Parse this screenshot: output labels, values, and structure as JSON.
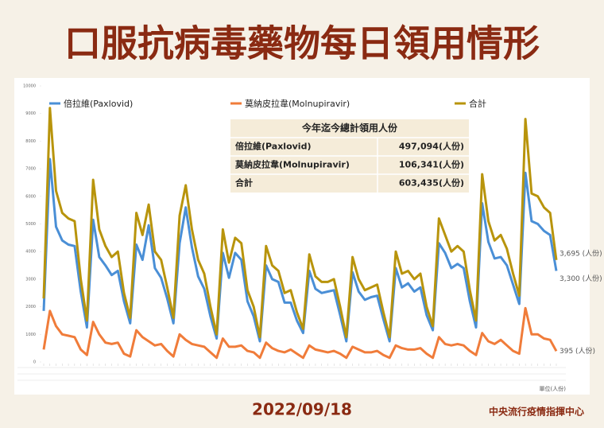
{
  "chart_data": {
    "type": "line",
    "title": "口服抗病毒藥物每日領用情形",
    "date": "2022/09/18",
    "source": "中央流行疫情指揮中心",
    "unit": "單位(人份)",
    "categories": [
      null,
      null,
      null,
      null,
      null,
      null,
      null,
      null,
      null,
      null,
      null,
      null,
      null,
      null,
      null,
      null,
      null,
      null,
      null,
      null,
      null,
      null,
      null,
      null,
      null,
      null,
      null,
      null,
      null,
      null,
      null,
      null,
      null,
      null,
      null,
      null,
      null,
      null,
      null,
      null,
      null,
      null,
      null,
      null,
      null,
      null,
      null,
      null,
      null,
      null,
      null,
      null,
      null,
      null,
      null,
      null,
      null,
      null,
      null,
      null,
      null,
      null,
      null,
      null,
      null,
      null,
      null,
      null,
      null,
      null,
      null,
      null,
      null,
      null,
      null,
      null,
      null,
      null,
      null,
      null,
      null,
      null,
      null,
      null
    ],
    "ylim": [
      0,
      10000
    ],
    "yticks": [
      0,
      1000,
      2000,
      3000,
      4000,
      5000,
      6000,
      7000,
      8000,
      9000,
      10000
    ],
    "series": [
      {
        "name": "倍拉維(Paxlovid)",
        "color": "#4a8fd6",
        "values": [
          1850,
          7350,
          4900,
          4400,
          4250,
          4200,
          2550,
          1250,
          5150,
          3800,
          3500,
          3150,
          3300,
          2200,
          1400,
          4250,
          3700,
          4950,
          3400,
          3050,
          2300,
          1400,
          4300,
          5600,
          4150,
          3100,
          2650,
          1650,
          850,
          3950,
          3050,
          3950,
          3700,
          2200,
          1650,
          750,
          3500,
          3000,
          2900,
          2150,
          2150,
          1500,
          1050,
          3300,
          2650,
          2500,
          2550,
          2600,
          1700,
          750,
          3250,
          2550,
          2250,
          2350,
          2400,
          1550,
          750,
          3400,
          2700,
          2850,
          2550,
          2700,
          1700,
          1150,
          4300,
          3950,
          3400,
          3550,
          3400,
          2200,
          1250,
          5750,
          4350,
          3750,
          3800,
          3500,
          2800,
          2100,
          6850,
          5100,
          5000,
          4750,
          4600,
          3300
        ],
        "value_labels": [
          null,
          null,
          null,
          null,
          null,
          null,
          null,
          null,
          null,
          null,
          null,
          null,
          null,
          null,
          null,
          null,
          null,
          null,
          null,
          null,
          null,
          null,
          null,
          null,
          null,
          null,
          null,
          null,
          null,
          null,
          null,
          null,
          null,
          null,
          null,
          null,
          null,
          null,
          null,
          null,
          null,
          null,
          null,
          null,
          null,
          null,
          null,
          null,
          null,
          null,
          null,
          null,
          null,
          null,
          null,
          null,
          null,
          null,
          null,
          null,
          null,
          null,
          null,
          null,
          null,
          null,
          null,
          null,
          null,
          null,
          null,
          null,
          null,
          null,
          null,
          null,
          null,
          null,
          null,
          null,
          null,
          null,
          null,
          "3,300 (人份)"
        ]
      },
      {
        "name": "莫納皮拉韋(Molnupiravir)",
        "color": "#f07c3a",
        "values": [
          450,
          1850,
          1300,
          1000,
          950,
          900,
          450,
          250,
          1450,
          1000,
          700,
          650,
          700,
          300,
          200,
          1150,
          900,
          750,
          600,
          650,
          400,
          200,
          1000,
          800,
          650,
          600,
          550,
          350,
          150,
          850,
          550,
          550,
          600,
          400,
          350,
          150,
          700,
          500,
          400,
          350,
          450,
          300,
          150,
          600,
          450,
          400,
          350,
          400,
          300,
          150,
          550,
          450,
          350,
          350,
          400,
          250,
          150,
          600,
          500,
          450,
          450,
          500,
          300,
          150,
          900,
          650,
          600,
          650,
          600,
          400,
          250,
          1050,
          750,
          650,
          800,
          600,
          400,
          300,
          1950,
          1000,
          1000,
          850,
          800,
          395
        ],
        "value_labels": [
          null,
          null,
          null,
          null,
          null,
          null,
          null,
          null,
          null,
          null,
          null,
          null,
          null,
          null,
          null,
          null,
          null,
          null,
          null,
          null,
          null,
          null,
          null,
          null,
          null,
          null,
          null,
          null,
          null,
          null,
          null,
          null,
          null,
          null,
          null,
          null,
          null,
          null,
          null,
          null,
          null,
          null,
          null,
          null,
          null,
          null,
          null,
          null,
          null,
          null,
          null,
          null,
          null,
          null,
          null,
          null,
          null,
          null,
          null,
          null,
          null,
          null,
          null,
          null,
          null,
          null,
          null,
          null,
          null,
          null,
          null,
          null,
          null,
          null,
          null,
          null,
          null,
          null,
          null,
          null,
          null,
          null,
          null,
          "395 (人份)"
        ]
      },
      {
        "name": "合計",
        "color": "#b8940c",
        "values": [
          2300,
          9200,
          6200,
          5400,
          5200,
          5100,
          3000,
          1500,
          6600,
          4800,
          4200,
          3800,
          4000,
          2500,
          1600,
          5400,
          4600,
          5700,
          4000,
          3700,
          2700,
          1600,
          5300,
          6400,
          4800,
          3700,
          3200,
          2000,
          1000,
          4800,
          3600,
          4500,
          4300,
          2600,
          2000,
          900,
          4200,
          3500,
          3300,
          2500,
          2600,
          1800,
          1200,
          3900,
          3100,
          2900,
          2900,
          3000,
          2000,
          900,
          3800,
          3000,
          2600,
          2700,
          2800,
          1800,
          900,
          4000,
          3200,
          3300,
          3000,
          3200,
          2000,
          1300,
          5200,
          4600,
          4000,
          4200,
          4000,
          2600,
          1500,
          6800,
          5100,
          4400,
          4600,
          4100,
          3200,
          2400,
          8800,
          6100,
          6000,
          5600,
          5400,
          3695
        ],
        "value_labels": [
          null,
          null,
          null,
          null,
          null,
          null,
          null,
          null,
          null,
          null,
          null,
          null,
          null,
          null,
          null,
          null,
          null,
          null,
          null,
          null,
          null,
          null,
          null,
          null,
          null,
          null,
          null,
          null,
          null,
          null,
          null,
          null,
          null,
          null,
          null,
          null,
          null,
          null,
          null,
          null,
          null,
          null,
          null,
          null,
          null,
          null,
          null,
          null,
          null,
          null,
          null,
          null,
          null,
          null,
          null,
          null,
          null,
          null,
          null,
          null,
          null,
          null,
          null,
          null,
          null,
          null,
          null,
          null,
          null,
          null,
          null,
          null,
          null,
          null,
          null,
          null,
          null,
          null,
          null,
          null,
          null,
          null,
          null,
          "3,695 (人份)"
        ]
      }
    ],
    "summary": {
      "title": "今年迄今總計領用人份",
      "rows": [
        [
          "倍拉維(Paxlovid)",
          "497,094(人份)"
        ],
        [
          "莫納皮拉韋(Molnupiravir)",
          "106,341(人份)"
        ],
        [
          "合計",
          "603,435(人份)"
        ]
      ]
    }
  }
}
